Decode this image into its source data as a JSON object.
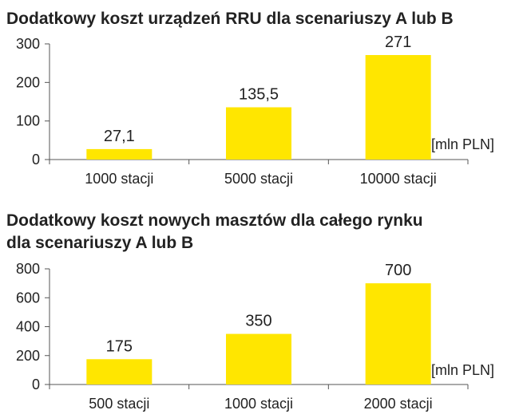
{
  "accent": "#FFE600",
  "chart_data": [
    {
      "type": "bar",
      "title": "Dodatkowy koszt urządzeń RRU dla scenariuszy A lub B",
      "unit": "[mln PLN]",
      "categories": [
        "1000 stacji",
        "5000 stacji",
        "10000 stacji"
      ],
      "values": [
        27.1,
        135.5,
        271
      ],
      "value_labels": [
        "27,1",
        "135,5",
        "271"
      ],
      "yticks": [
        0,
        100,
        200,
        300
      ],
      "ylim": [
        0,
        300
      ],
      "grid": false,
      "color": "#FFE600"
    },
    {
      "type": "bar",
      "title_lines": [
        "Dodatkowy koszt nowych masztów dla całego rynku",
        "dla scenariuszy A lub B"
      ],
      "unit": "[mln PLN]",
      "categories": [
        "500 stacji",
        "1000 stacji",
        "2000 stacji"
      ],
      "values": [
        175,
        350,
        700
      ],
      "value_labels": [
        "175",
        "350",
        "700"
      ],
      "yticks": [
        0,
        200,
        400,
        600,
        800
      ],
      "ylim": [
        0,
        800
      ],
      "grid": false,
      "color": "#FFE600"
    }
  ]
}
